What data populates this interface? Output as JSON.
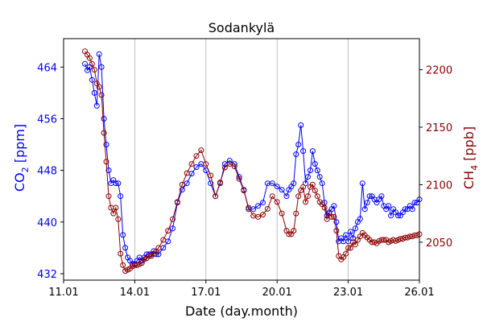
{
  "chart_data": {
    "type": "line",
    "title": "Sodankylä",
    "xlabel": "Date (day.month)",
    "ylabel_left": {
      "base": "CO",
      "sub": "2",
      "unit": " [ppm]"
    },
    "ylabel_right": {
      "base": "CH",
      "sub": "4",
      "unit": " [ppb]"
    },
    "x_ticks": [
      "11.01",
      "14.01",
      "17.01",
      "20.01",
      "23.01",
      "26.01"
    ],
    "xlim": [
      0,
      15
    ],
    "x_unit": "days since 11.01",
    "y_left_ticks": [
      "432",
      "440",
      "448",
      "456",
      "464"
    ],
    "y_left_lim": [
      431,
      468.4
    ],
    "y_right_ticks": [
      "2050",
      "2100",
      "2150",
      "2200"
    ],
    "y_right_lim": [
      2017,
      2227
    ],
    "grid": "vertical",
    "colors": {
      "co2": "#0000ff",
      "ch4": "#8b0000",
      "left_axis_text": "#0000ff",
      "right_axis_text": "#8b0000"
    },
    "series": [
      {
        "name": "CO2",
        "axis": "left",
        "x": [
          0.9,
          1.0,
          1.1,
          1.2,
          1.3,
          1.4,
          1.5,
          1.6,
          1.7,
          1.8,
          1.9,
          2.0,
          2.1,
          2.2,
          2.3,
          2.4,
          2.5,
          2.6,
          2.7,
          2.8,
          2.9,
          3.0,
          3.1,
          3.2,
          3.3,
          3.4,
          3.5,
          3.6,
          3.7,
          3.8,
          3.9,
          4.0,
          4.2,
          4.4,
          4.6,
          4.8,
          5.0,
          5.2,
          5.4,
          5.6,
          5.8,
          6.0,
          6.2,
          6.4,
          6.6,
          6.8,
          7.0,
          7.2,
          7.4,
          7.6,
          7.8,
          8.0,
          8.2,
          8.4,
          8.6,
          8.8,
          9.0,
          9.2,
          9.4,
          9.5,
          9.6,
          9.7,
          9.8,
          9.9,
          10.0,
          10.1,
          10.2,
          10.3,
          10.4,
          10.5,
          10.6,
          10.7,
          10.8,
          10.9,
          11.0,
          11.1,
          11.2,
          11.3,
          11.4,
          11.5,
          11.6,
          11.7,
          11.8,
          11.9,
          12.0,
          12.1,
          12.2,
          12.3,
          12.4,
          12.5,
          12.6,
          12.7,
          12.8,
          12.9,
          13.0,
          13.1,
          13.2,
          13.3,
          13.4,
          13.5,
          13.6,
          13.7,
          13.8,
          13.9,
          14.0,
          14.1,
          14.2,
          14.3,
          14.4,
          14.5,
          14.6,
          14.7,
          14.8,
          14.9,
          15.0
        ],
        "values": [
          464.5,
          463.5,
          464.0,
          462.0,
          460.0,
          458.0,
          466.0,
          464.0,
          456.0,
          452.0,
          448.0,
          446.0,
          446.5,
          446.0,
          446.0,
          444.0,
          438.0,
          436.0,
          434.5,
          434.0,
          433.5,
          433.5,
          434.0,
          434.5,
          434.0,
          434.5,
          435.0,
          435.0,
          435.0,
          435.5,
          435.0,
          435.0,
          436.0,
          437.0,
          439.0,
          443.0,
          445.0,
          446.0,
          447.5,
          448.5,
          449.0,
          448.0,
          446.0,
          444.0,
          446.0,
          449.0,
          449.5,
          449.0,
          447.0,
          445.0,
          442.0,
          442.0,
          442.5,
          443.0,
          446.0,
          446.0,
          445.5,
          445.0,
          444.0,
          445.0,
          445.5,
          446.0,
          450.5,
          452.0,
          455.0,
          451.0,
          446.0,
          447.0,
          448.0,
          451.0,
          449.0,
          448.0,
          447.0,
          446.0,
          443.0,
          441.0,
          441.5,
          442.0,
          442.5,
          440.0,
          437.0,
          437.5,
          437.0,
          438.0,
          437.0,
          438.5,
          437.5,
          439.0,
          440.0,
          440.5,
          446.0,
          442.0,
          443.0,
          444.0,
          444.0,
          443.5,
          443.0,
          443.5,
          444.0,
          442.5,
          442.0,
          442.5,
          441.0,
          442.0,
          441.5,
          441.0,
          441.0,
          441.5,
          442.0,
          442.0,
          442.5,
          442.0,
          443.0,
          443.0,
          443.5
        ]
      },
      {
        "name": "CH4",
        "axis": "right",
        "x": [
          0.9,
          1.0,
          1.1,
          1.2,
          1.3,
          1.4,
          1.5,
          1.6,
          1.7,
          1.8,
          1.9,
          2.0,
          2.1,
          2.2,
          2.3,
          2.4,
          2.5,
          2.6,
          2.7,
          2.8,
          2.9,
          3.0,
          3.1,
          3.2,
          3.3,
          3.4,
          3.5,
          3.6,
          3.7,
          3.8,
          3.9,
          4.0,
          4.2,
          4.4,
          4.6,
          4.8,
          5.0,
          5.2,
          5.4,
          5.6,
          5.8,
          6.0,
          6.2,
          6.4,
          6.6,
          6.8,
          7.0,
          7.2,
          7.4,
          7.6,
          7.8,
          8.0,
          8.2,
          8.4,
          8.6,
          8.8,
          9.0,
          9.2,
          9.4,
          9.5,
          9.6,
          9.7,
          9.8,
          9.9,
          10.0,
          10.1,
          10.2,
          10.3,
          10.4,
          10.5,
          10.6,
          10.7,
          10.8,
          10.9,
          11.0,
          11.1,
          11.2,
          11.3,
          11.4,
          11.5,
          11.6,
          11.7,
          11.8,
          11.9,
          12.0,
          12.1,
          12.2,
          12.3,
          12.4,
          12.5,
          12.6,
          12.7,
          12.8,
          12.9,
          13.0,
          13.1,
          13.2,
          13.3,
          13.4,
          13.5,
          13.6,
          13.7,
          13.8,
          13.9,
          14.0,
          14.1,
          14.2,
          14.3,
          14.4,
          14.5,
          14.6,
          14.7,
          14.8,
          14.9,
          15.0
        ],
        "values": [
          2216,
          2213,
          2210,
          2205,
          2200,
          2188,
          2185,
          2178,
          2145,
          2120,
          2090,
          2080,
          2075,
          2080,
          2070,
          2040,
          2030,
          2025,
          2026,
          2027,
          2029,
          2030,
          2030,
          2031,
          2032,
          2035,
          2036,
          2038,
          2038,
          2040,
          2042,
          2045,
          2052,
          2060,
          2070,
          2085,
          2100,
          2110,
          2118,
          2125,
          2130,
          2118,
          2108,
          2090,
          2102,
          2115,
          2118,
          2116,
          2105,
          2095,
          2080,
          2073,
          2072,
          2074,
          2079,
          2090,
          2085,
          2075,
          2060,
          2057,
          2057,
          2060,
          2075,
          2090,
          2095,
          2098,
          2085,
          2090,
          2098,
          2100,
          2095,
          2090,
          2085,
          2083,
          2080,
          2070,
          2075,
          2072,
          2072,
          2060,
          2038,
          2035,
          2037,
          2040,
          2045,
          2045,
          2050,
          2048,
          2052,
          2055,
          2058,
          2056,
          2054,
          2052,
          2050,
          2050,
          2049,
          2051,
          2052,
          2052,
          2052,
          2050,
          2051,
          2052,
          2051,
          2052,
          2053,
          2053,
          2054,
          2054,
          2055,
          2055,
          2056,
          2056,
          2057
        ]
      }
    ]
  }
}
